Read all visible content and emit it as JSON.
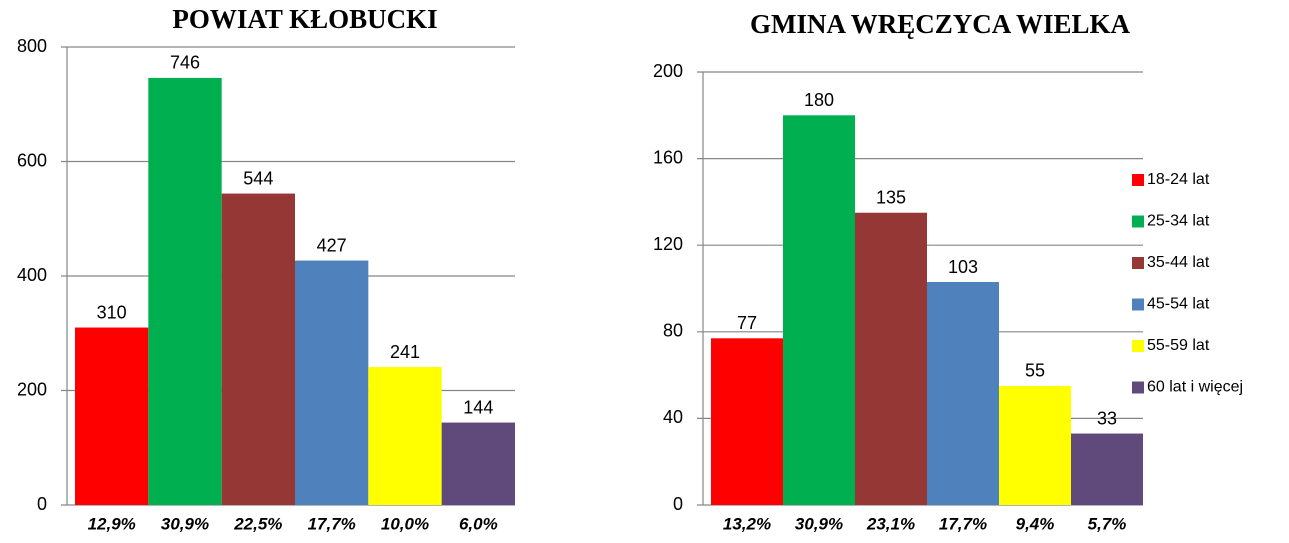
{
  "chart_data": [
    {
      "type": "bar",
      "title": "POWIAT KŁOBUCKI",
      "categories": [
        "12,9%",
        "30,9%",
        "22,5%",
        "17,7%",
        "10,0%",
        "6,0%"
      ],
      "values": [
        310,
        746,
        544,
        427,
        241,
        144
      ],
      "colors": [
        "#ff0000",
        "#00b050",
        "#953735",
        "#4f81bd",
        "#ffff00",
        "#604a7b"
      ],
      "ylim": [
        0,
        800
      ],
      "yticks": [
        0,
        200,
        400,
        600,
        800
      ],
      "grid": true
    },
    {
      "type": "bar",
      "title": "GMINA WRĘCZYCA WIELKA",
      "categories": [
        "13,2%",
        "30,9%",
        "23,1%",
        "17,7%",
        "9,4%",
        "5,7%"
      ],
      "values": [
        77,
        180,
        135,
        103,
        55,
        33
      ],
      "colors": [
        "#ff0000",
        "#00b050",
        "#953735",
        "#4f81bd",
        "#ffff00",
        "#604a7b"
      ],
      "ylim": [
        0,
        200
      ],
      "yticks": [
        0,
        40,
        80,
        120,
        160,
        200
      ],
      "grid": true,
      "legend": {
        "position": "right",
        "labels": [
          "18-24 lat",
          "25-34 lat",
          "35-44 lat",
          "45-54 lat",
          "55-59 lat",
          "60 lat i więcej"
        ]
      }
    }
  ]
}
